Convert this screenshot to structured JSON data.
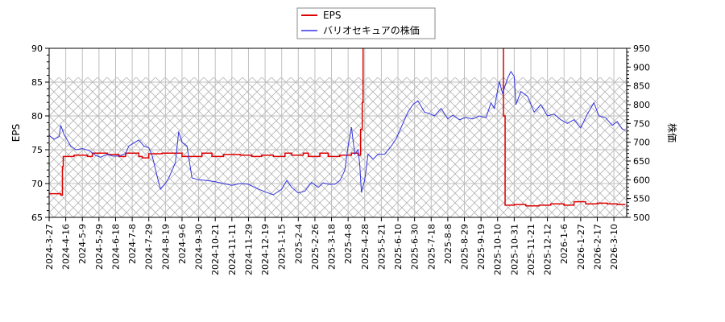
{
  "chart_data": {
    "type": "line",
    "title": "",
    "legend": {
      "position": "top-center",
      "entries": [
        {
          "label": "EPS",
          "color": "#dd0000"
        },
        {
          "label": "バリオセキュアの株価",
          "color": "#3333dd"
        }
      ]
    },
    "xlabel": "",
    "ylabel_left": "EPS",
    "ylabel_right": "株価",
    "ylim_left": [
      65,
      90
    ],
    "ylim_right": [
      500,
      950
    ],
    "yticks_left": [
      65,
      70,
      75,
      80,
      85,
      90
    ],
    "yticks_right": [
      500,
      550,
      600,
      650,
      700,
      750,
      800,
      850,
      900,
      950
    ],
    "grid": true,
    "hatched_region": {
      "ymax_left": 85.7
    },
    "x_tick_labels": [
      "2024-3-27",
      "2024-4-16",
      "2024-5-9",
      "2024-5-29",
      "2024-6-18",
      "2024-7-8",
      "2024-7-29",
      "2024-8-19",
      "2024-9-6",
      "2024-9-30",
      "2024-10-21",
      "2024-11-11",
      "2024-11-29",
      "2024-12-19",
      "2025-1-15",
      "2025-2-4",
      "2025-2-26",
      "2025-3-18",
      "2025-4-8",
      "2025-4-28",
      "2025-5-21",
      "2025-6-10",
      "2025-6-30",
      "2025-7-18",
      "2025-8-8",
      "2025-8-29",
      "2025-9-19",
      "2025-10-10",
      "2025-10-31",
      "2025-11-21",
      "2025-12-12",
      "2026-1-6",
      "2026-1-27",
      "2026-2-17",
      "2026-3-10"
    ],
    "series": [
      {
        "name": "EPS",
        "axis": "left",
        "color": "#dd0000",
        "points": [
          [
            0,
            68.5
          ],
          [
            0.7,
            68.3
          ],
          [
            0.8,
            72.5
          ],
          [
            0.85,
            74.0
          ],
          [
            1.5,
            74.2
          ],
          [
            2.3,
            74.0
          ],
          [
            2.6,
            74.5
          ],
          [
            3.5,
            74.3
          ],
          [
            4.2,
            74.0
          ],
          [
            4.6,
            74.5
          ],
          [
            5.4,
            74.0
          ],
          [
            5.6,
            73.8
          ],
          [
            6.0,
            74.4
          ],
          [
            6.8,
            74.5
          ],
          [
            7.5,
            74.5
          ],
          [
            8.0,
            74.0
          ],
          [
            8.8,
            74.0
          ],
          [
            9.2,
            74.5
          ],
          [
            9.8,
            74.0
          ],
          [
            10.5,
            74.3
          ],
          [
            11.5,
            74.2
          ],
          [
            12.2,
            74.0
          ],
          [
            12.8,
            74.2
          ],
          [
            13.5,
            74.0
          ],
          [
            14.2,
            74.5
          ],
          [
            14.6,
            74.2
          ],
          [
            15.3,
            74.5
          ],
          [
            15.6,
            74.0
          ],
          [
            16.3,
            74.5
          ],
          [
            16.8,
            74.0
          ],
          [
            17.5,
            74.2
          ],
          [
            18.2,
            74.5
          ],
          [
            18.6,
            74.2
          ],
          [
            18.75,
            78
          ],
          [
            18.85,
            82
          ],
          [
            18.9,
            91.5
          ],
          [
            19.5,
            91.8
          ],
          [
            20.2,
            91.5
          ],
          [
            20.8,
            92.0
          ],
          [
            21.5,
            91.6
          ],
          [
            22.2,
            91.8
          ],
          [
            23.0,
            91.5
          ],
          [
            23.5,
            91.8
          ],
          [
            24.2,
            91.6
          ],
          [
            25.0,
            92.0
          ],
          [
            25.8,
            91.8
          ],
          [
            26.6,
            91.6
          ],
          [
            27.2,
            91.5
          ],
          [
            27.35,
            80
          ],
          [
            27.45,
            66.8
          ],
          [
            28.0,
            66.9
          ],
          [
            28.7,
            66.7
          ],
          [
            29.5,
            66.8
          ],
          [
            30.2,
            67.0
          ],
          [
            31.0,
            66.8
          ],
          [
            31.6,
            67.3
          ],
          [
            32.3,
            67.0
          ],
          [
            33.0,
            67.1
          ],
          [
            33.6,
            67.0
          ],
          [
            34.2,
            66.9
          ],
          [
            34.7,
            66.9
          ]
        ]
      },
      {
        "name": "バリオセキュアの株価",
        "axis": "right",
        "color": "#3333dd",
        "points": [
          [
            0,
            718
          ],
          [
            0.3,
            708
          ],
          [
            0.6,
            715
          ],
          [
            0.7,
            745
          ],
          [
            0.9,
            720
          ],
          [
            1.1,
            705
          ],
          [
            1.3,
            690
          ],
          [
            1.6,
            680
          ],
          [
            2.0,
            683
          ],
          [
            2.4,
            678
          ],
          [
            2.8,
            665
          ],
          [
            3.1,
            660
          ],
          [
            3.5,
            668
          ],
          [
            3.8,
            663
          ],
          [
            4.2,
            663
          ],
          [
            4.6,
            670
          ],
          [
            4.8,
            690
          ],
          [
            5.1,
            698
          ],
          [
            5.4,
            706
          ],
          [
            5.7,
            690
          ],
          [
            6.0,
            685
          ],
          [
            6.2,
            665
          ],
          [
            6.5,
            610
          ],
          [
            6.7,
            575
          ],
          [
            7.0,
            590
          ],
          [
            7.2,
            605
          ],
          [
            7.4,
            625
          ],
          [
            7.6,
            645
          ],
          [
            7.8,
            728
          ],
          [
            8.0,
            700
          ],
          [
            8.3,
            690
          ],
          [
            8.6,
            605
          ],
          [
            9.0,
            600
          ],
          [
            9.5,
            598
          ],
          [
            10.0,
            595
          ],
          [
            10.5,
            590
          ],
          [
            11.0,
            585
          ],
          [
            11.5,
            590
          ],
          [
            12.0,
            588
          ],
          [
            12.5,
            577
          ],
          [
            13.0,
            568
          ],
          [
            13.5,
            560
          ],
          [
            14.0,
            575
          ],
          [
            14.3,
            598
          ],
          [
            14.6,
            580
          ],
          [
            15.0,
            565
          ],
          [
            15.4,
            570
          ],
          [
            15.8,
            593
          ],
          [
            16.2,
            580
          ],
          [
            16.5,
            592
          ],
          [
            16.8,
            588
          ],
          [
            17.2,
            588
          ],
          [
            17.5,
            598
          ],
          [
            17.8,
            625
          ],
          [
            18.0,
            690
          ],
          [
            18.2,
            740
          ],
          [
            18.4,
            668
          ],
          [
            18.6,
            680
          ],
          [
            18.7,
            640
          ],
          [
            18.8,
            566
          ],
          [
            19.0,
            600
          ],
          [
            19.2,
            668
          ],
          [
            19.5,
            655
          ],
          [
            19.8,
            668
          ],
          [
            20.2,
            668
          ],
          [
            20.6,
            690
          ],
          [
            20.9,
            710
          ],
          [
            21.2,
            740
          ],
          [
            21.6,
            780
          ],
          [
            21.9,
            800
          ],
          [
            22.2,
            810
          ],
          [
            22.6,
            780
          ],
          [
            22.9,
            776
          ],
          [
            23.2,
            770
          ],
          [
            23.6,
            790
          ],
          [
            24.0,
            762
          ],
          [
            24.3,
            772
          ],
          [
            24.7,
            760
          ],
          [
            25.1,
            766
          ],
          [
            25.5,
            762
          ],
          [
            25.9,
            770
          ],
          [
            26.3,
            765
          ],
          [
            26.6,
            805
          ],
          [
            26.8,
            790
          ],
          [
            27.1,
            862
          ],
          [
            27.3,
            830
          ],
          [
            27.6,
            870
          ],
          [
            27.8,
            888
          ],
          [
            28.0,
            875
          ],
          [
            28.1,
            800
          ],
          [
            28.4,
            835
          ],
          [
            28.8,
            822
          ],
          [
            29.2,
            780
          ],
          [
            29.6,
            800
          ],
          [
            30.0,
            770
          ],
          [
            30.4,
            775
          ],
          [
            30.8,
            760
          ],
          [
            31.2,
            750
          ],
          [
            31.6,
            760
          ],
          [
            32.0,
            738
          ],
          [
            32.4,
            775
          ],
          [
            32.8,
            805
          ],
          [
            33.1,
            770
          ],
          [
            33.5,
            765
          ],
          [
            33.9,
            745
          ],
          [
            34.2,
            755
          ],
          [
            34.5,
            735
          ],
          [
            34.7,
            732
          ]
        ]
      }
    ]
  }
}
